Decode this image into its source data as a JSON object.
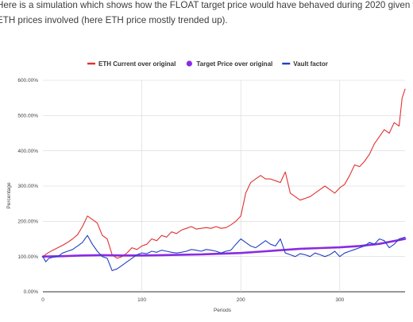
{
  "intro_text": "Here is a simulation which shows how the FLOAT target price would have behaved during 2020 given the ETH prices involved (here ETH price mostly trended up).",
  "chart_data": {
    "type": "line",
    "title": "",
    "xlabel": "Periods",
    "ylabel": "Percentage",
    "xlim": [
      0,
      366
    ],
    "ylim": [
      0,
      600
    ],
    "x_ticks": [
      0,
      100,
      200,
      300
    ],
    "y_ticks": [
      "0.00%",
      "100.00%",
      "200.00%",
      "300.00%",
      "400.00%",
      "500.00%",
      "600.00%"
    ],
    "grid": true,
    "legend_position": "top",
    "series": [
      {
        "name": "ETH Current over original",
        "color": "#e03131",
        "x": [
          0,
          5,
          10,
          15,
          20,
          25,
          30,
          35,
          40,
          45,
          50,
          55,
          60,
          65,
          70,
          75,
          80,
          85,
          90,
          95,
          100,
          105,
          110,
          115,
          120,
          125,
          130,
          135,
          140,
          145,
          150,
          155,
          160,
          165,
          170,
          175,
          180,
          185,
          190,
          195,
          200,
          205,
          210,
          215,
          220,
          225,
          230,
          235,
          240,
          245,
          250,
          255,
          260,
          265,
          270,
          275,
          280,
          285,
          290,
          295,
          300,
          305,
          310,
          315,
          320,
          325,
          330,
          335,
          340,
          345,
          350,
          355,
          360,
          363,
          366
        ],
        "values": [
          100,
          110,
          118,
          125,
          132,
          140,
          150,
          162,
          185,
          215,
          205,
          195,
          160,
          150,
          105,
          95,
          100,
          110,
          125,
          120,
          130,
          135,
          150,
          145,
          160,
          155,
          170,
          165,
          175,
          180,
          185,
          178,
          180,
          182,
          180,
          185,
          180,
          182,
          190,
          200,
          215,
          280,
          310,
          320,
          330,
          320,
          320,
          315,
          310,
          340,
          280,
          270,
          260,
          265,
          270,
          280,
          290,
          300,
          290,
          280,
          295,
          305,
          330,
          360,
          355,
          370,
          390,
          420,
          440,
          460,
          450,
          480,
          470,
          550,
          575
        ]
      },
      {
        "name": "Target Price over original",
        "color": "#8a2be2",
        "x": [
          0,
          20,
          40,
          60,
          80,
          100,
          120,
          140,
          160,
          180,
          200,
          220,
          240,
          260,
          280,
          300,
          320,
          340,
          366
        ],
        "values": [
          100,
          101,
          103,
          104,
          103,
          103,
          104,
          105,
          106,
          108,
          110,
          114,
          118,
          122,
          124,
          126,
          130,
          136,
          150
        ]
      },
      {
        "name": "Vault factor",
        "color": "#2140c4",
        "x": [
          0,
          3,
          6,
          10,
          15,
          20,
          25,
          30,
          35,
          40,
          45,
          50,
          55,
          60,
          65,
          70,
          75,
          80,
          85,
          90,
          95,
          100,
          105,
          110,
          115,
          120,
          125,
          130,
          135,
          140,
          145,
          150,
          155,
          160,
          165,
          170,
          175,
          180,
          185,
          190,
          195,
          200,
          205,
          210,
          215,
          220,
          225,
          230,
          235,
          240,
          245,
          250,
          255,
          260,
          265,
          270,
          275,
          280,
          285,
          290,
          295,
          300,
          305,
          310,
          315,
          320,
          325,
          330,
          335,
          340,
          345,
          350,
          355,
          360,
          366
        ],
        "values": [
          100,
          85,
          95,
          98,
          100,
          110,
          115,
          120,
          130,
          140,
          160,
          135,
          115,
          100,
          95,
          60,
          65,
          75,
          85,
          95,
          105,
          110,
          108,
          115,
          112,
          118,
          115,
          112,
          110,
          112,
          115,
          120,
          118,
          115,
          120,
          118,
          115,
          110,
          115,
          118,
          135,
          150,
          140,
          130,
          125,
          135,
          145,
          135,
          130,
          150,
          110,
          105,
          100,
          108,
          105,
          100,
          110,
          105,
          100,
          105,
          115,
          100,
          110,
          115,
          120,
          125,
          130,
          140,
          135,
          150,
          145,
          125,
          135,
          150,
          155
        ]
      }
    ]
  }
}
